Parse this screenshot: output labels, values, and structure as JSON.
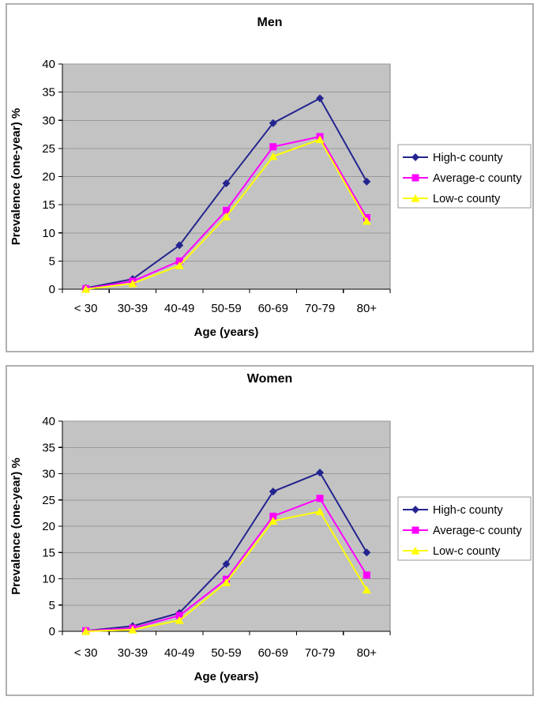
{
  "colors": {
    "plot_bg": "#c3c3c3",
    "gridline": "#999999",
    "axis": "#000000",
    "plot_border": "#858585",
    "panel_border": "#b0b0b0",
    "legend_border": "#999999",
    "legend_bg": "#ffffff",
    "series_high": "#24248f",
    "series_average": "#ff00ff",
    "series_low": "#ffff00"
  },
  "chart_data": [
    {
      "type": "line",
      "title": "Men",
      "xlabel": "Age (years)",
      "ylabel": "Prevalence (one-year) %",
      "categories": [
        "< 30",
        "30-39",
        "40-49",
        "50-59",
        "60-69",
        "70-79",
        "80+"
      ],
      "ylim": [
        0,
        40
      ],
      "ytick_step": 5,
      "grid": true,
      "legend_position": "right",
      "series": [
        {
          "name": "High-c county",
          "color": "#24248f",
          "marker": "diamond",
          "values": [
            0.2,
            1.8,
            7.8,
            18.8,
            29.5,
            33.9,
            19.1
          ]
        },
        {
          "name": "Average-c county",
          "color": "#ff00ff",
          "marker": "square",
          "values": [
            0.1,
            1.4,
            5.0,
            14.0,
            25.3,
            27.1,
            12.7
          ]
        },
        {
          "name": "Low-c county",
          "color": "#ffff00",
          "marker": "triangle",
          "values": [
            0.0,
            1.0,
            4.2,
            12.9,
            23.6,
            26.6,
            12.1
          ]
        }
      ]
    },
    {
      "type": "line",
      "title": "Women",
      "xlabel": "Age (years)",
      "ylabel": "Prevalence (one-year) %",
      "categories": [
        "< 30",
        "30-39",
        "40-49",
        "50-59",
        "60-69",
        "70-79",
        "80+"
      ],
      "ylim": [
        0,
        40
      ],
      "ytick_step": 5,
      "grid": true,
      "legend_position": "right",
      "series": [
        {
          "name": "High-c county",
          "color": "#24248f",
          "marker": "diamond",
          "values": [
            0.1,
            1.0,
            3.5,
            12.8,
            26.6,
            30.2,
            15.0
          ]
        },
        {
          "name": "Average-c county",
          "color": "#ff00ff",
          "marker": "square",
          "values": [
            0.1,
            0.6,
            3.0,
            9.9,
            21.9,
            25.3,
            10.7
          ]
        },
        {
          "name": "Low-c county",
          "color": "#ffff00",
          "marker": "triangle",
          "values": [
            0.0,
            0.3,
            2.1,
            9.3,
            21.0,
            22.8,
            7.9
          ]
        }
      ]
    }
  ]
}
